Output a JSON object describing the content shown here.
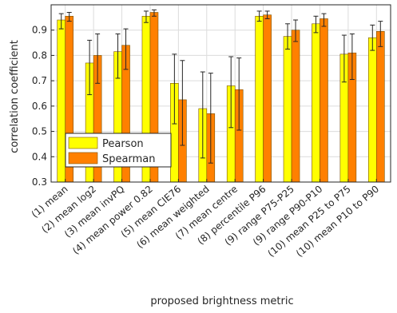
{
  "chart_data": {
    "type": "bar",
    "title": "",
    "xlabel": "proposed brightness metric",
    "ylabel": "correlation coefficient",
    "ylim": [
      0.3,
      1.0
    ],
    "yticks": [
      0.3,
      0.4,
      0.5,
      0.6,
      0.7,
      0.8,
      0.9
    ],
    "grid": true,
    "legend_position": "lower-left",
    "categories": [
      "(1) mean",
      "(2) mean log2",
      "(3) mean invPQ",
      "(4) mean power 0.82",
      "(5) mean CIE76",
      "(6) mean weighted",
      "(7) mean centre",
      "(8) percentile P96",
      "(9) range P75-P25",
      "(9) range P90-P10",
      "(10) mean P25 to P75",
      "(10) mean P10 to P90"
    ],
    "series": [
      {
        "name": "Pearson",
        "color": "#ffff00",
        "values": [
          0.94,
          0.77,
          0.815,
          0.955,
          0.69,
          0.59,
          0.68,
          0.955,
          0.875,
          0.925,
          0.805,
          0.87
        ],
        "error_low": [
          0.905,
          0.645,
          0.71,
          0.93,
          0.53,
          0.395,
          0.515,
          0.935,
          0.825,
          0.89,
          0.695,
          0.82
        ],
        "error_high": [
          0.965,
          0.86,
          0.885,
          0.975,
          0.805,
          0.735,
          0.795,
          0.975,
          0.925,
          0.955,
          0.88,
          0.92
        ]
      },
      {
        "name": "Spearman",
        "color": "#ff8000",
        "values": [
          0.955,
          0.8,
          0.84,
          0.97,
          0.625,
          0.57,
          0.665,
          0.96,
          0.9,
          0.945,
          0.81,
          0.895
        ],
        "error_low": [
          0.935,
          0.69,
          0.745,
          0.955,
          0.445,
          0.375,
          0.505,
          0.945,
          0.855,
          0.915,
          0.705,
          0.835
        ],
        "error_high": [
          0.97,
          0.885,
          0.905,
          0.98,
          0.78,
          0.73,
          0.79,
          0.975,
          0.94,
          0.965,
          0.885,
          0.935
        ]
      }
    ]
  }
}
